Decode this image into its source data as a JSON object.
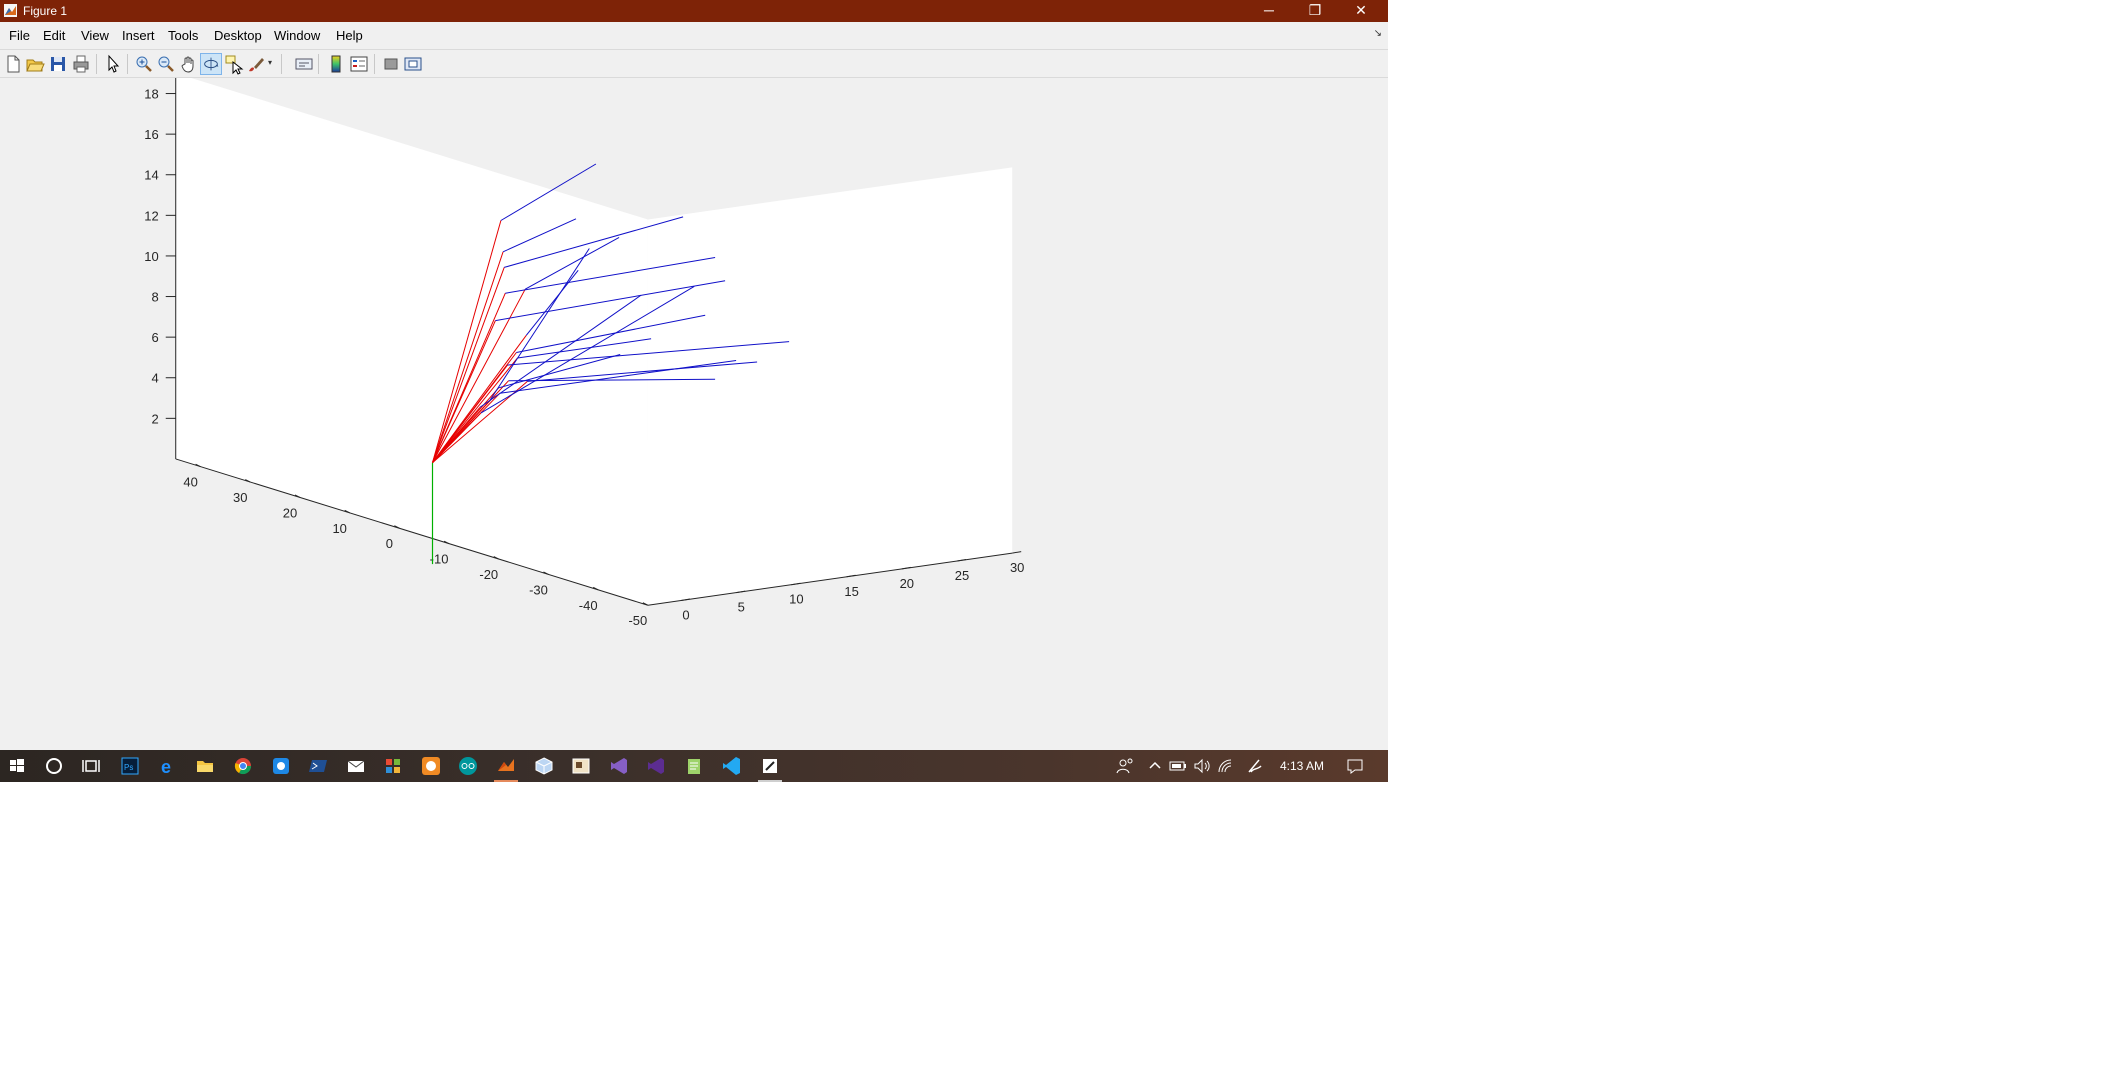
{
  "window": {
    "title": "Figure 1",
    "minimize_glyph": "─",
    "restore_glyph": "❐",
    "close_glyph": "✕"
  },
  "menu": [
    "File",
    "Edit",
    "View",
    "Insert",
    "Tools",
    "Desktop",
    "Window",
    "Help"
  ],
  "menu_dock_glyph": "↘",
  "toolbar_icons": [
    "new-figure-icon",
    "open-file-icon",
    "save-icon",
    "print-icon",
    "edit-plot-arrow-icon",
    "zoom-in-icon",
    "zoom-out-icon",
    "pan-hand-icon",
    "rotate-3d-icon",
    "data-cursor-icon",
    "brush-icon",
    "link-plot-icon",
    "insert-colorbar-icon",
    "insert-legend-icon",
    "hide-plot-tools-icon",
    "show-plot-tools-icon"
  ],
  "colors": {
    "titlebar": "#7e2307",
    "axes_bg": "#ffffff",
    "figure_bg": "#f0f0f0",
    "arm": "#e60000",
    "target": "#1010c8",
    "base": "#00b000"
  },
  "chart_data": {
    "type": "line3d",
    "title": "",
    "xlabel": "",
    "ylabel": "",
    "zlabel": "",
    "x_ticks": [
      "-50",
      "-40",
      "-30",
      "-20",
      "-10",
      "0",
      "10",
      "20",
      "30",
      "40"
    ],
    "y_ticks": [
      "0",
      "5",
      "10",
      "15",
      "20",
      "25",
      "30"
    ],
    "z_ticks": [
      "2",
      "4",
      "6",
      "8",
      "10",
      "12",
      "14",
      "16",
      "18"
    ],
    "xlim": [
      -50,
      45
    ],
    "ylim": [
      -3,
      30
    ],
    "zlim": [
      0,
      19
    ],
    "grid": false,
    "origin": [
      0,
      0,
      3
    ],
    "base_line": {
      "from": [
        0,
        0,
        -2
      ],
      "to": [
        0,
        0,
        3
      ]
    },
    "series": [
      {
        "color": "red",
        "lines": [
          {
            "from": [
              0,
              0,
              3
            ],
            "to": [
              4,
              8,
              14
            ]
          },
          {
            "from": [
              0,
              0,
              3
            ],
            "to": [
              8,
              10,
              12
            ]
          },
          {
            "from": [
              0,
              0,
              3
            ],
            "to": [
              10,
              11,
              11
            ]
          },
          {
            "from": [
              0,
              0,
              3
            ],
            "to": [
              8,
              12,
              10
            ]
          },
          {
            "from": [
              0,
              0,
              3
            ],
            "to": [
              12,
              12,
              9.5
            ]
          },
          {
            "from": [
              0,
              0,
              3
            ],
            "to": [
              14,
              12,
              8
            ]
          },
          {
            "from": [
              0,
              0,
              3
            ],
            "to": [
              10,
              13,
              7.5
            ]
          },
          {
            "from": [
              0,
              0,
              3
            ],
            "to": [
              12,
              13,
              6.5
            ]
          },
          {
            "from": [
              0,
              0,
              3
            ],
            "to": [
              14,
              14,
              6
            ]
          },
          {
            "from": [
              0,
              0,
              3
            ],
            "to": [
              16,
              14,
              5.5
            ]
          },
          {
            "from": [
              0,
              0,
              3
            ],
            "to": [
              12,
              14,
              5
            ]
          },
          {
            "from": [
              0,
              0,
              3
            ],
            "to": [
              18,
              15,
              4.5
            ]
          },
          {
            "from": [
              0,
              0,
              3
            ],
            "to": [
              20,
              15,
              4
            ]
          },
          {
            "from": [
              0,
              0,
              3
            ],
            "to": [
              22,
              16,
              3.5
            ]
          },
          {
            "from": [
              0,
              0,
              3
            ],
            "to": [
              24,
              16,
              3
            ]
          },
          {
            "from": [
              0,
              0,
              3
            ],
            "to": [
              26,
              16,
              2.5
            ]
          },
          {
            "from": [
              0,
              0,
              3
            ],
            "to": [
              28,
              17,
              2
            ]
          }
        ]
      },
      {
        "color": "blue",
        "lines": [
          {
            "from": [
              4,
              8,
              14
            ],
            "to": [
              -4,
              13,
              17
            ]
          },
          {
            "from": [
              8,
              10,
              12
            ],
            "to": [
              0,
              13,
              14
            ]
          },
          {
            "from": [
              10,
              11,
              11
            ],
            "to": [
              -6,
              20,
              14
            ]
          },
          {
            "from": [
              8,
              12,
              10
            ],
            "to": [
              -2,
              16,
              13
            ]
          },
          {
            "from": [
              12,
              12,
              9.5
            ],
            "to": [
              -8,
              22,
              12
            ]
          },
          {
            "from": [
              14,
              12,
              8
            ],
            "to": [
              -10,
              22,
              11
            ]
          },
          {
            "from": [
              10,
              13,
              7.5
            ],
            "to": [
              4,
              15,
              11
            ]
          },
          {
            "from": [
              12,
              13,
              6.5
            ],
            "to": [
              -6,
              22,
              9
            ]
          },
          {
            "from": [
              14,
              14,
              6
            ],
            "to": [
              -4,
              18,
              8
            ]
          },
          {
            "from": [
              16,
              14,
              5.5
            ],
            "to": [
              -14,
              26,
              8
            ]
          },
          {
            "from": [
              12,
              14,
              5
            ],
            "to": [
              -12,
              24,
              7
            ]
          },
          {
            "from": [
              18,
              15,
              4.5
            ],
            "to": [
              -8,
              22,
              6
            ]
          },
          {
            "from": [
              20,
              15,
              4
            ],
            "to": [
              0,
              17,
              7
            ]
          },
          {
            "from": [
              22,
              16,
              3.5
            ],
            "to": [
              -10,
              23,
              7
            ]
          },
          {
            "from": [
              24,
              16,
              3
            ],
            "to": [
              4,
              16,
              12
            ]
          },
          {
            "from": [
              26,
              16,
              2.5
            ],
            "to": [
              -2,
              18,
              10
            ]
          },
          {
            "from": [
              28,
              17,
              2
            ],
            "to": [
              -6,
              21,
              10.5
            ]
          }
        ]
      }
    ]
  },
  "taskbar": {
    "apps": [
      "start-windows-icon",
      "cortana-search-icon",
      "task-view-icon",
      "photoshop-icon",
      "edge-icon",
      "file-explorer-icon",
      "chrome-icon",
      "app-blue-icon",
      "powershell-icon",
      "mail-icon",
      "app-grid-icon",
      "app-orange-icon",
      "arduino-icon",
      "matlab-icon",
      "app-cube-icon",
      "app-photo-icon",
      "visual-studio-icon",
      "visual-studio-preview-icon",
      "notepad-icon",
      "vscode-icon",
      "snip-icon"
    ],
    "tray": [
      "people-icon",
      "chevron-up-icon",
      "battery-icon",
      "volume-icon",
      "wifi-icon",
      "pen-icon"
    ],
    "clock": "4:13 AM"
  }
}
